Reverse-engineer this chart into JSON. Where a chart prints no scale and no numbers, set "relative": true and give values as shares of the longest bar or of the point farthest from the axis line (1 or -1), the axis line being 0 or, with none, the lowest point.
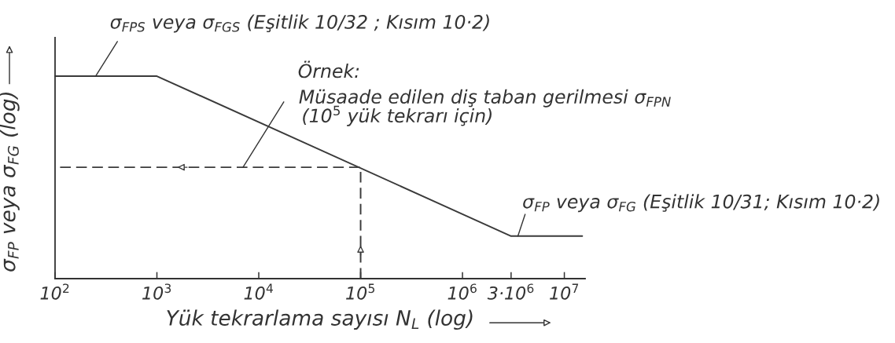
{
  "chart_data": {
    "type": "line",
    "relative": true,
    "log": "x",
    "xlabel": "Yük tekrarlama sayısı N$_{L}$ (log)",
    "ylabel": "σ$_{FP}$ veya σ$_{FG}$ (log)",
    "xlim": [
      100,
      16000000
    ],
    "xticks": [
      {
        "value": 100,
        "label": "10$^{2}$"
      },
      {
        "value": 1000,
        "label": "10$^{3}$"
      },
      {
        "value": 10000,
        "label": "10$^{4}$"
      },
      {
        "value": 100000,
        "label": "10$^{5}$"
      },
      {
        "value": 1000000,
        "label": "10$^{6}$"
      },
      {
        "value": 3000000,
        "label": "3·10$^{6}$"
      },
      {
        "value": 10000000,
        "label": "10$^{7}$"
      }
    ],
    "series": [
      {
        "color": "#3a3a3a",
        "line_style": "solid",
        "x": [
          100,
          1000,
          3000000,
          15000000
        ],
        "values": [
          1,
          1,
          0.21,
          0.21
        ]
      },
      {
        "color": "#3a3a3a",
        "line_style": "dashed",
        "x": [
          100000,
          100000,
          100
        ],
        "values": [
          0,
          0.55,
          0.55
        ]
      }
    ],
    "annotations": [
      {
        "text": "σ$_{FPS}$ veya σ$_{FGS}$ (Eşitlik 10/32 ; Kısım 10·2)",
        "x": 250,
        "y": 1
      },
      "Örnek:",
      {
        "text": "Müsaade edilen diş taban gerilmesi σ$_{FPN}$",
        "x": 7000,
        "y": 0.55
      },
      "(10$^{5}$ yük tekrarı için)",
      {
        "text": "σ$_{FP}$ veya σ$_{FG}$ (Eşitlik 10/31; Kısım 10·2)",
        "x": 3500000,
        "y": 0.21
      }
    ],
    "grid": false,
    "tick_labels": "x",
    "marker": "none"
  }
}
